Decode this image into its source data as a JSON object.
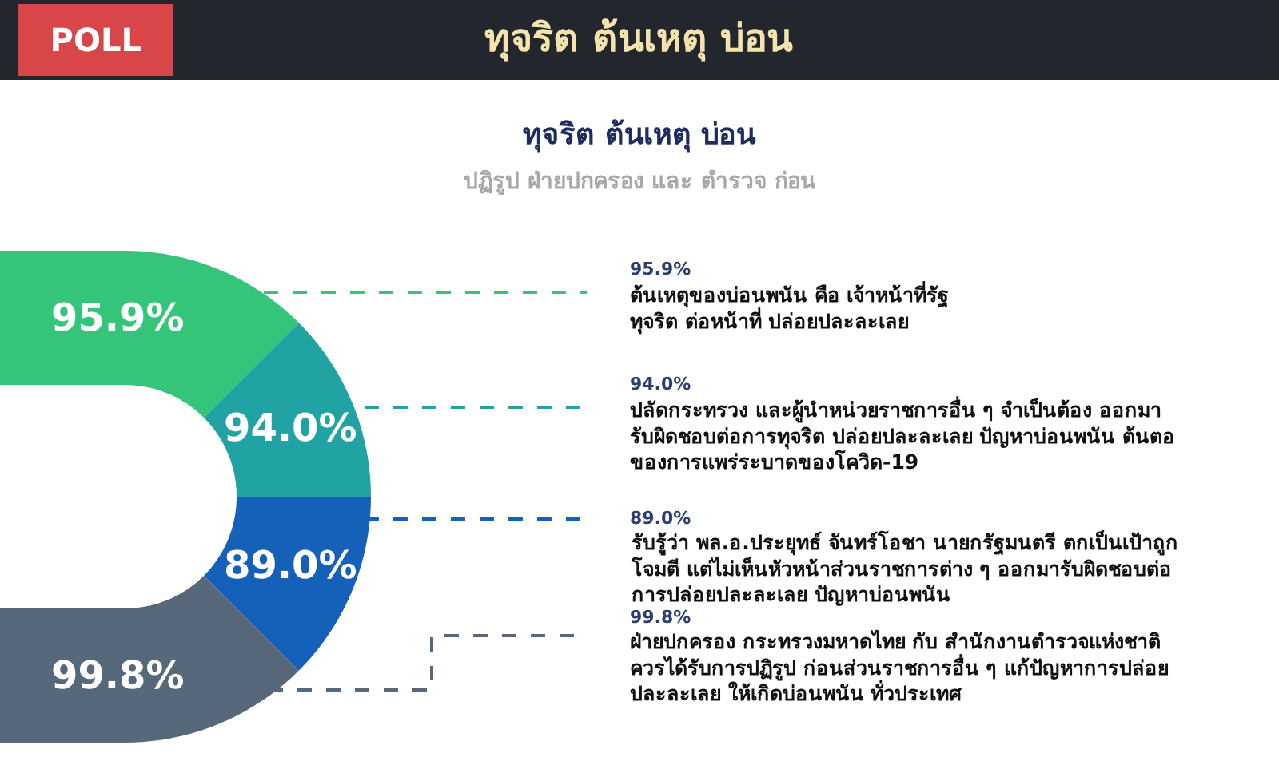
{
  "chart_data": {
    "type": "other",
    "title": "ทุจริต ต้นเหตุ บ่อน",
    "subtitle": "ปฏิรูป ฝ่ายปกครอง และ ตำรวจ ก่อน",
    "annotations": [
      "POLL",
      "ทุจริต ต้นเหตุ บ่อน"
    ],
    "categories": [
      "ต้นเหตุของบ่อนพนัน คือ เจ้าหน้าที่รัฐ\nทุจริต ต่อหน้าที่ ปล่อยปละละเลย",
      "ปลัดกระทรวง และผู้นำหน่วยราชการอื่น ๆ จำเป็นต้อง ออกมา\nรับผิดชอบต่อการทุจริต ปล่อยปละละเลย ปัญหาบ่อนพนัน ต้นตอ\nของการแพร่ระบาดของโควิด-19",
      "รับรู้ว่า พล.อ.ประยุทธ์ จันทร์โอชา นายกรัฐมนตรี ตกเป็นเป้าถูก\nโจมตี แต่ไม่เห็นหัวหน้าส่วนราชการต่าง ๆ ออกมารับผิดชอบต่อ\nการปล่อยปละละเลย ปัญหาบ่อนพนัน",
      "ฝ่ายปกครอง กระทรวงมหาดไทย กับ สำนักงานตำรวจแห่งชาติ\nควรได้รับการปฏิรูป ก่อนส่วนราชการอื่น ๆ แก้ปัญหาการปล่อย\nปละละเลย ให้เกิดบ่อนพนัน ทั่วประเทศ"
    ],
    "values": [
      95.9,
      94.0,
      89.0,
      99.8
    ],
    "value_labels": [
      "95.9%",
      "94.0%",
      "89.0%",
      "99.8%"
    ],
    "colors": [
      "#34c47a",
      "#22a3a3",
      "#1560b8",
      "#566879"
    ]
  }
}
